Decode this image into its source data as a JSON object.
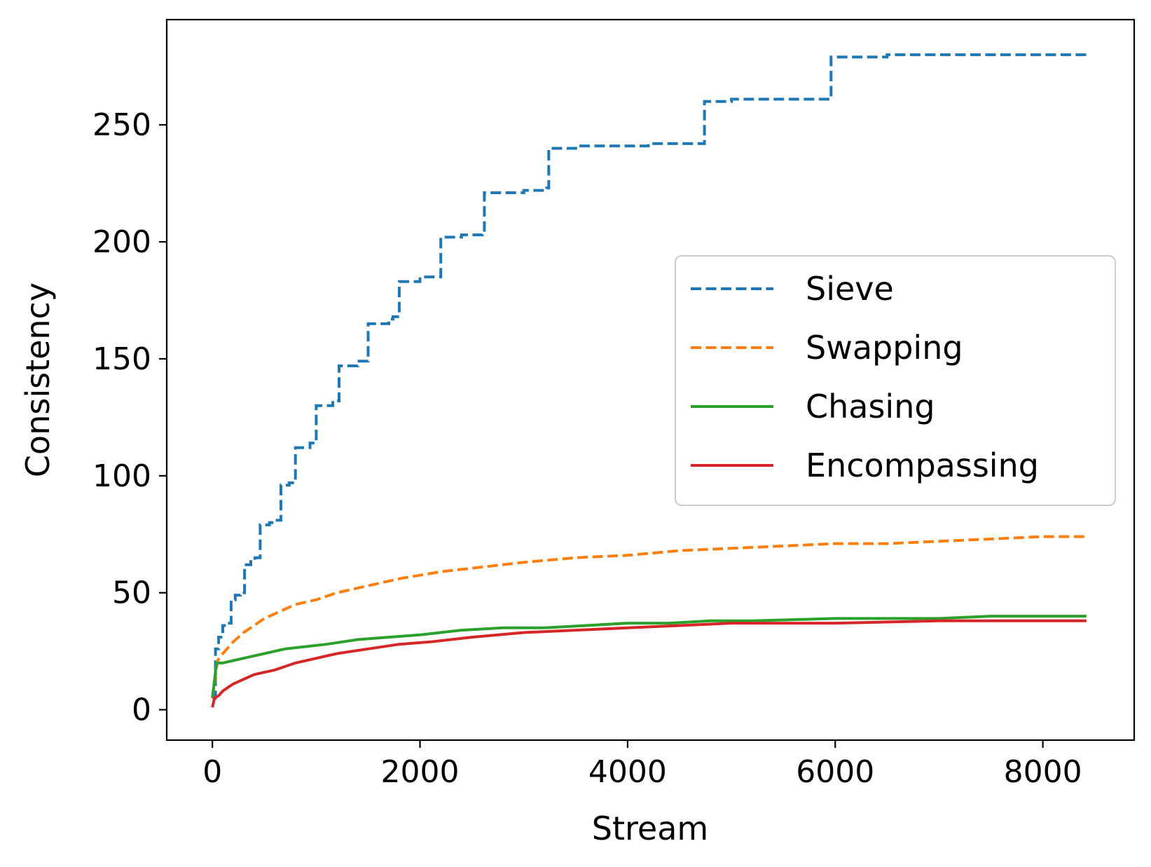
{
  "chart_data": {
    "type": "line",
    "title": "",
    "xlabel": "Stream",
    "ylabel": "Consistency",
    "xlim": [
      -440,
      8880
    ],
    "ylim": [
      -13,
      295
    ],
    "xticks": [
      0,
      2000,
      4000,
      6000,
      8000
    ],
    "yticks": [
      0,
      50,
      100,
      150,
      200,
      250
    ],
    "xtick_labels": [
      "0",
      "2000",
      "4000",
      "6000",
      "8000"
    ],
    "ytick_labels": [
      "0",
      "50",
      "100",
      "150",
      "200",
      "250"
    ],
    "grid": false,
    "legend_position": "center-right",
    "series": [
      {
        "name": "Sieve",
        "color": "#1f77b4",
        "style": "dashed",
        "step": true,
        "x": [
          0,
          30,
          60,
          100,
          140,
          180,
          220,
          270,
          310,
          370,
          410,
          460,
          550,
          600,
          660,
          740,
          800,
          940,
          1000,
          1160,
          1220,
          1400,
          1500,
          1700,
          1740,
          1800,
          2000,
          2180,
          2200,
          2400,
          2600,
          2620,
          2800,
          3000,
          3220,
          3240,
          3500,
          3800,
          4000,
          4200,
          4720,
          4740,
          5000,
          5940,
          5960,
          6500,
          8420
        ],
        "y": [
          5,
          26,
          31,
          36,
          37,
          47,
          49,
          50,
          62,
          64,
          65,
          79,
          80,
          81,
          96,
          97,
          112,
          114,
          130,
          132,
          147,
          149,
          165,
          167,
          168,
          183,
          185,
          185,
          202,
          203,
          204,
          221,
          221,
          222,
          223,
          240,
          241,
          241,
          241,
          242,
          242,
          260,
          261,
          261,
          279,
          280,
          280
        ]
      },
      {
        "name": "Swapping",
        "color": "#ff7f0e",
        "style": "dashed",
        "step": false,
        "x": [
          0,
          50,
          100,
          200,
          300,
          400,
          500,
          600,
          700,
          800,
          1000,
          1200,
          1500,
          1800,
          2200,
          2600,
          3000,
          3500,
          4000,
          4500,
          5000,
          5500,
          6000,
          6500,
          7000,
          7500,
          8000,
          8420
        ],
        "y": [
          5,
          21,
          24,
          29,
          33,
          36,
          39,
          41,
          43,
          45,
          47,
          50,
          53,
          56,
          59,
          61,
          63,
          65,
          66,
          68,
          69,
          70,
          71,
          71,
          72,
          73,
          74,
          74
        ]
      },
      {
        "name": "Chasing",
        "color": "#2ca02c",
        "style": "solid",
        "step": false,
        "x": [
          0,
          40,
          100,
          200,
          300,
          500,
          700,
          900,
          1100,
          1400,
          1700,
          2000,
          2400,
          2800,
          3200,
          3600,
          4000,
          4400,
          4800,
          5200,
          6000,
          7000,
          7500,
          8420
        ],
        "y": [
          5,
          20,
          20,
          21,
          22,
          24,
          26,
          27,
          28,
          30,
          31,
          32,
          34,
          35,
          35,
          36,
          37,
          37,
          38,
          38,
          39,
          39,
          40,
          40
        ]
      },
      {
        "name": "Encompassing",
        "color": "#d62728",
        "style": "solid",
        "step": false,
        "x": [
          0,
          20,
          60,
          100,
          200,
          300,
          400,
          500,
          600,
          800,
          1000,
          1200,
          1500,
          1800,
          2100,
          2500,
          3000,
          3500,
          4000,
          4500,
          5000,
          6000,
          7000,
          8420
        ],
        "y": [
          1,
          5,
          6,
          8,
          11,
          13,
          15,
          16,
          17,
          20,
          22,
          24,
          26,
          28,
          29,
          31,
          33,
          34,
          35,
          36,
          37,
          37,
          38,
          38
        ]
      }
    ]
  }
}
